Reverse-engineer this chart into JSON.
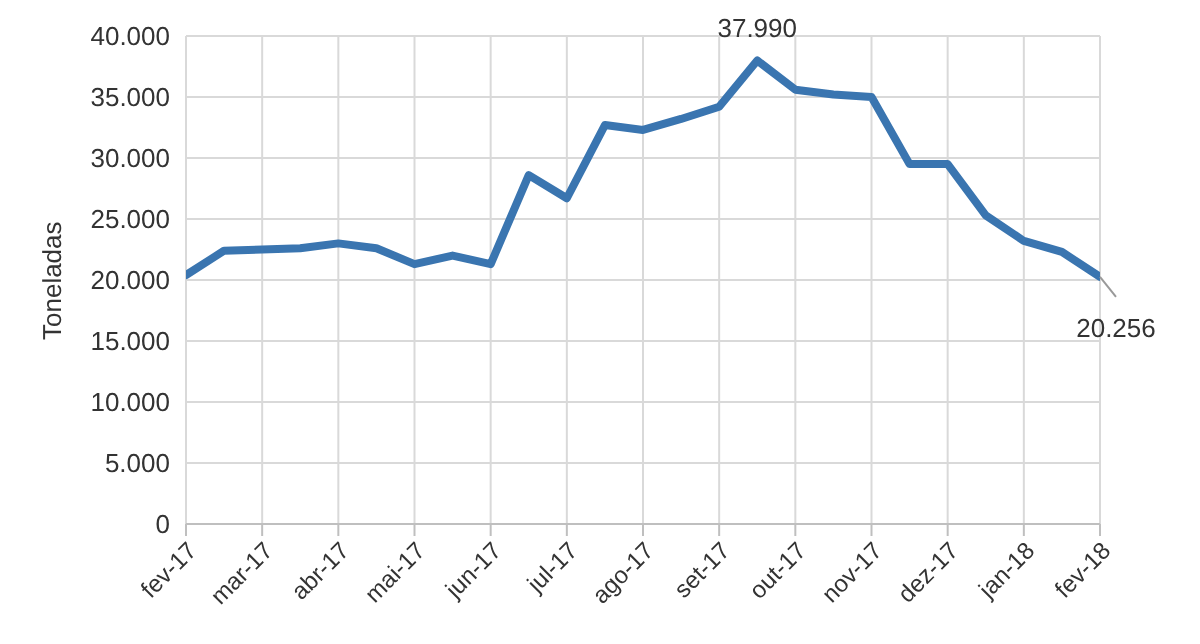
{
  "chart_data": {
    "type": "line",
    "ylabel": "Toneladas",
    "categories": [
      "fev-17",
      null,
      "mar-17",
      null,
      "abr-17",
      null,
      "mai-17",
      null,
      "jun-17",
      null,
      "jul-17",
      null,
      "ago-17",
      null,
      "set-17",
      null,
      "out-17",
      null,
      "nov-17",
      null,
      "dez-17",
      null,
      "jan-18",
      null,
      "fev-18"
    ],
    "series": [
      {
        "color": "#3a75b0",
        "values": [
          20400,
          22400,
          22500,
          22600,
          23000,
          22600,
          21300,
          22000,
          21300,
          28600,
          26700,
          32700,
          32300,
          33200,
          34200,
          37990,
          35600,
          35200,
          35000,
          29500,
          29500,
          25300,
          23200,
          22300,
          20256
        ],
        "value_labels": [
          null,
          null,
          null,
          null,
          null,
          null,
          null,
          null,
          null,
          null,
          null,
          null,
          null,
          null,
          null,
          "37.990",
          null,
          null,
          null,
          null,
          null,
          null,
          null,
          null,
          "20.256"
        ]
      }
    ],
    "ylim": [
      0,
      40000
    ],
    "yticks": [
      {
        "value": 0,
        "label": "0"
      },
      {
        "value": 5000,
        "label": "5.000"
      },
      {
        "value": 10000,
        "label": "10.000"
      },
      {
        "value": 15000,
        "label": "15.000"
      },
      {
        "value": 20000,
        "label": "20.000"
      },
      {
        "value": 25000,
        "label": "25.000"
      },
      {
        "value": 30000,
        "label": "30.000"
      },
      {
        "value": 35000,
        "label": "35.000"
      },
      {
        "value": 40000,
        "label": "40.000"
      }
    ],
    "grid": true,
    "legend": false
  }
}
